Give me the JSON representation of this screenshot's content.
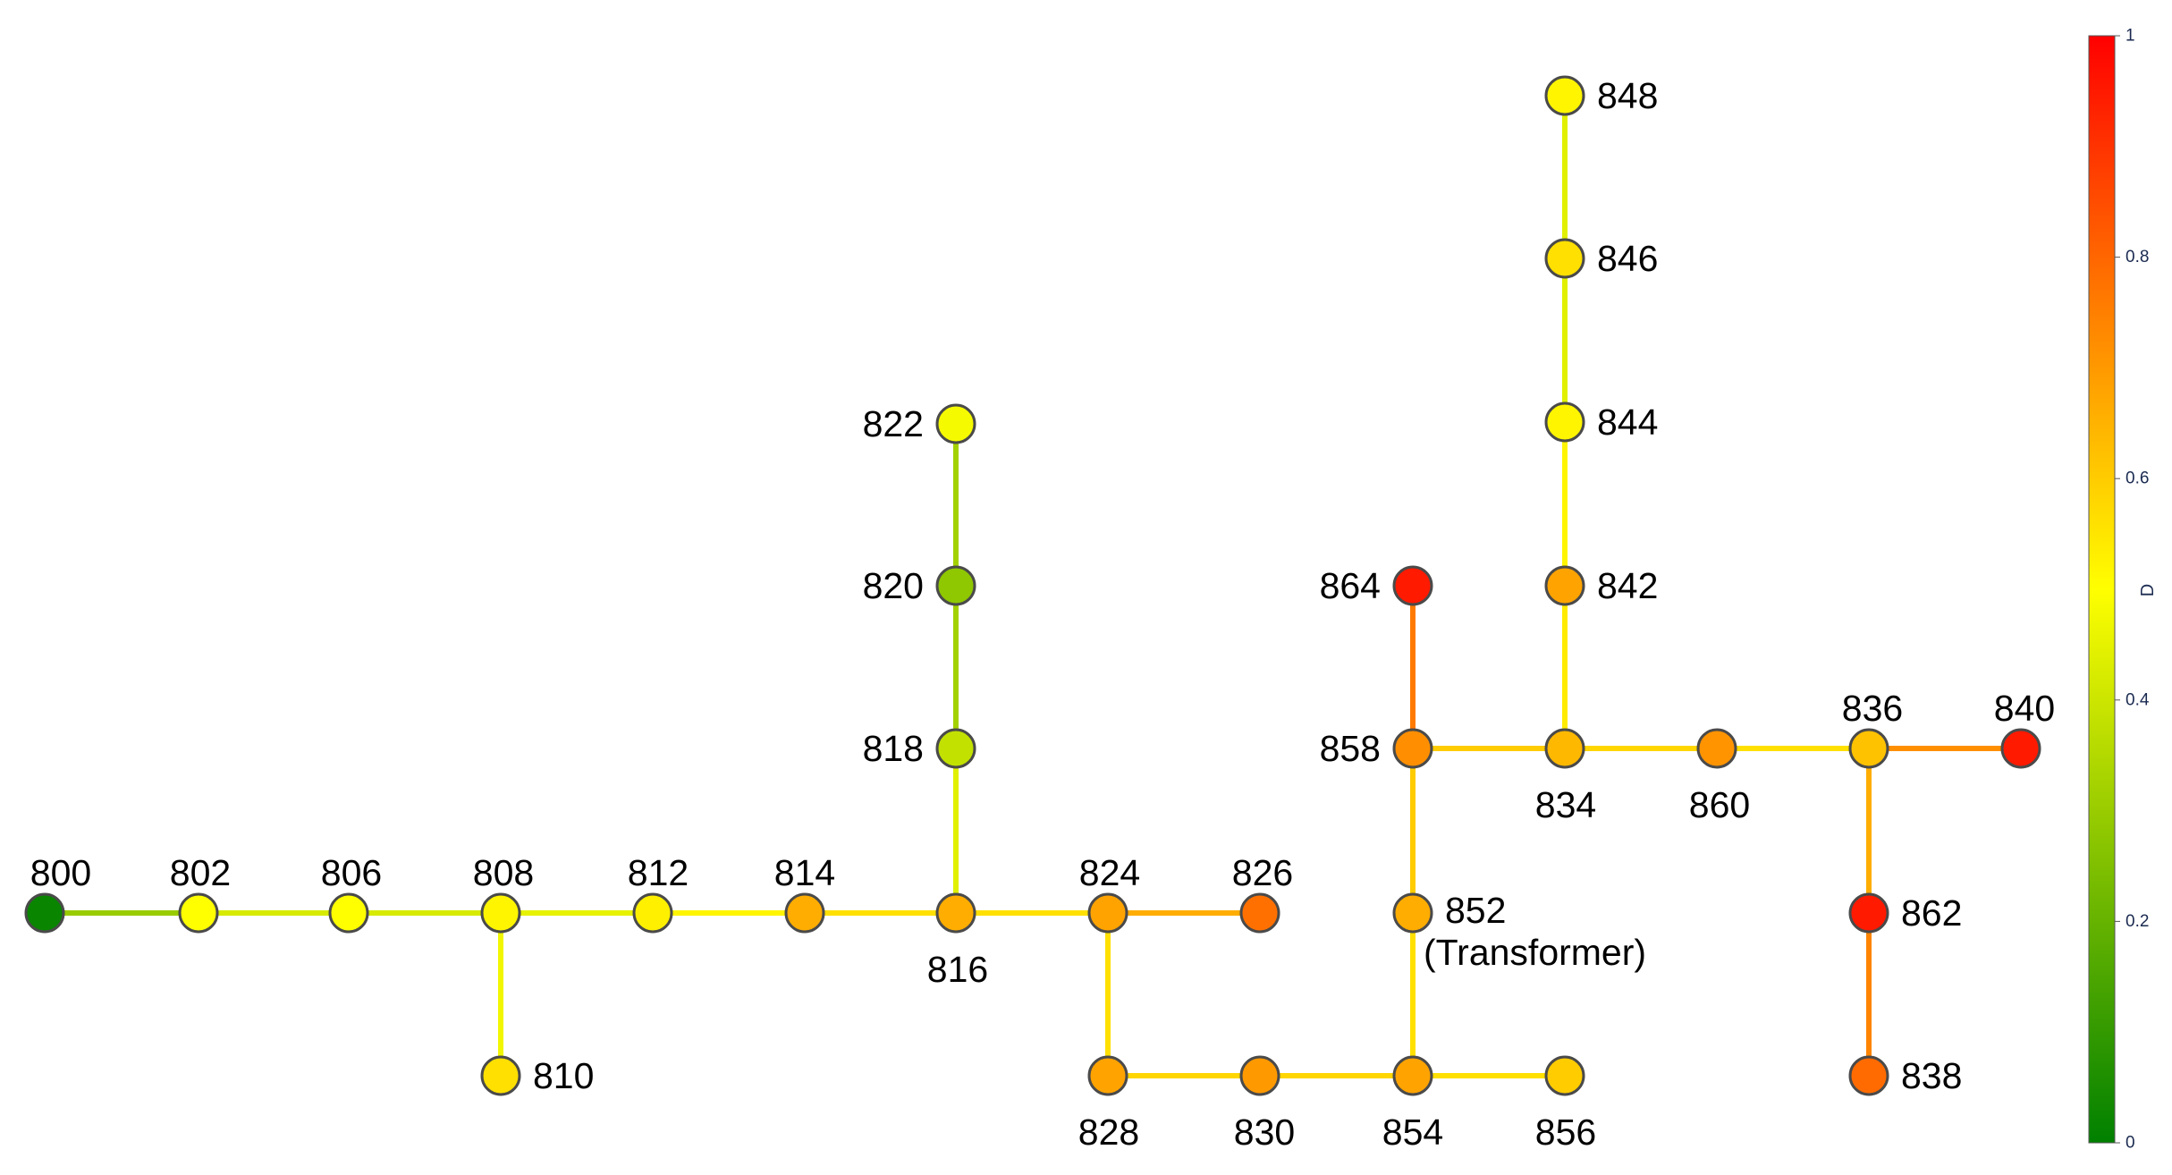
{
  "nodes": [
    {
      "id": "800",
      "label": "800",
      "value": 0.02
    },
    {
      "id": "802",
      "label": "802",
      "value": 0.5
    },
    {
      "id": "806",
      "label": "806",
      "value": 0.5
    },
    {
      "id": "808",
      "label": "808",
      "value": 0.52
    },
    {
      "id": "810",
      "label": "810",
      "value": 0.56
    },
    {
      "id": "812",
      "label": "812",
      "value": 0.53
    },
    {
      "id": "814",
      "label": "814",
      "value": 0.66
    },
    {
      "id": "816",
      "label": "816",
      "value": 0.66
    },
    {
      "id": "818",
      "label": "818",
      "value": 0.38
    },
    {
      "id": "820",
      "label": "820",
      "value": 0.28
    },
    {
      "id": "822",
      "label": "822",
      "value": 0.48
    },
    {
      "id": "824",
      "label": "824",
      "value": 0.68
    },
    {
      "id": "826",
      "label": "826",
      "value": 0.78
    },
    {
      "id": "828",
      "label": "828",
      "value": 0.68
    },
    {
      "id": "830",
      "label": "830",
      "value": 0.7
    },
    {
      "id": "854",
      "label": "854",
      "value": 0.68
    },
    {
      "id": "856",
      "label": "856",
      "value": 0.6
    },
    {
      "id": "852",
      "label": "852",
      "sublabel": "(Transformer)",
      "value": 0.66
    },
    {
      "id": "858",
      "label": "858",
      "value": 0.72
    },
    {
      "id": "864",
      "label": "864",
      "value": 0.95
    },
    {
      "id": "834",
      "label": "834",
      "value": 0.64
    },
    {
      "id": "860",
      "label": "860",
      "value": 0.71
    },
    {
      "id": "836",
      "label": "836",
      "value": 0.62
    },
    {
      "id": "840",
      "label": "840",
      "value": 0.95
    },
    {
      "id": "862",
      "label": "862",
      "value": 0.95
    },
    {
      "id": "838",
      "label": "838",
      "value": 0.79
    },
    {
      "id": "842",
      "label": "842",
      "value": 0.68
    },
    {
      "id": "844",
      "label": "844",
      "value": 0.52
    },
    {
      "id": "846",
      "label": "846",
      "value": 0.56
    },
    {
      "id": "848",
      "label": "848",
      "value": 0.52
    }
  ],
  "edges": [
    {
      "from": "800",
      "to": "802",
      "value": 0.3
    },
    {
      "from": "802",
      "to": "806",
      "value": 0.42
    },
    {
      "from": "806",
      "to": "808",
      "value": 0.42
    },
    {
      "from": "808",
      "to": "810",
      "value": 0.47
    },
    {
      "from": "808",
      "to": "812",
      "value": 0.45
    },
    {
      "from": "812",
      "to": "814",
      "value": 0.52
    },
    {
      "from": "814",
      "to": "816",
      "value": 0.56
    },
    {
      "from": "816",
      "to": "818",
      "value": 0.44
    },
    {
      "from": "818",
      "to": "820",
      "value": 0.32
    },
    {
      "from": "820",
      "to": "822",
      "value": 0.32
    },
    {
      "from": "816",
      "to": "824",
      "value": 0.56
    },
    {
      "from": "824",
      "to": "826",
      "value": 0.66
    },
    {
      "from": "824",
      "to": "828",
      "value": 0.56
    },
    {
      "from": "828",
      "to": "830",
      "value": 0.58
    },
    {
      "from": "830",
      "to": "854",
      "value": 0.58
    },
    {
      "from": "854",
      "to": "856",
      "value": 0.56
    },
    {
      "from": "854",
      "to": "852",
      "value": 0.56
    },
    {
      "from": "852",
      "to": "858",
      "value": 0.6
    },
    {
      "from": "858",
      "to": "864",
      "value": 0.76
    },
    {
      "from": "858",
      "to": "834",
      "value": 0.6
    },
    {
      "from": "834",
      "to": "842",
      "value": 0.54
    },
    {
      "from": "842",
      "to": "844",
      "value": 0.52
    },
    {
      "from": "844",
      "to": "846",
      "value": 0.44
    },
    {
      "from": "846",
      "to": "848",
      "value": 0.44
    },
    {
      "from": "834",
      "to": "860",
      "value": 0.58
    },
    {
      "from": "860",
      "to": "836",
      "value": 0.56
    },
    {
      "from": "836",
      "to": "840",
      "value": 0.72
    },
    {
      "from": "836",
      "to": "862",
      "value": 0.66
    },
    {
      "from": "862",
      "to": "838",
      "value": 0.74
    }
  ],
  "colorbar": {
    "title": "D",
    "min": 0,
    "max": 1,
    "ticks": [
      {
        "value": 0,
        "label": "0"
      },
      {
        "value": 0.2,
        "label": "0.2"
      },
      {
        "value": 0.4,
        "label": "0.4"
      },
      {
        "value": 0.6,
        "label": "0.6"
      },
      {
        "value": 0.8,
        "label": "0.8"
      },
      {
        "value": 1,
        "label": "1"
      }
    ],
    "stops": [
      "#008000",
      "#ffff00",
      "#ff0000"
    ]
  }
}
